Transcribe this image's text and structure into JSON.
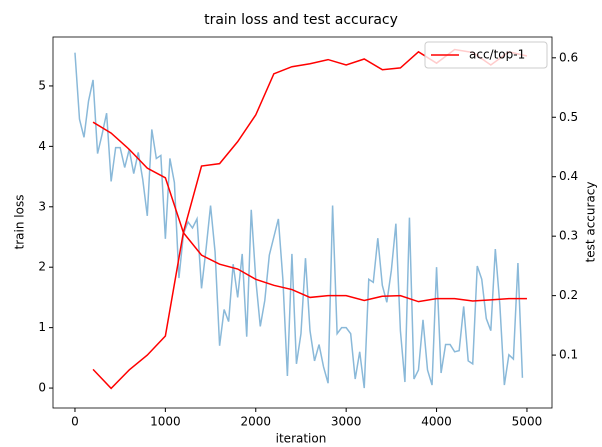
{
  "chart_data": {
    "type": "line",
    "title": "train loss and test accuracy",
    "x_label": "iteration",
    "y_label": "train loss",
    "y2_label": "test accuracy",
    "xlim": [
      -243,
      5277
    ],
    "xticks": [
      0,
      1000,
      2000,
      3000,
      4000,
      5000
    ],
    "ylim": [
      -0.33,
      5.81
    ],
    "yticks": [
      0,
      1,
      2,
      3,
      4,
      5
    ],
    "y2lim": [
      0.011,
      0.635
    ],
    "y2ticks": [
      0.1,
      0.2,
      0.3,
      0.4,
      0.5,
      0.6
    ],
    "legend": "upper right",
    "series": [
      {
        "color": "#8ab9d9",
        "x": [
          0,
          50,
          100,
          150,
          200,
          250,
          300,
          350,
          400,
          450,
          500,
          550,
          600,
          650,
          700,
          750,
          800,
          850,
          900,
          950,
          1000,
          1050,
          1100,
          1150,
          1200,
          1250,
          1300,
          1350,
          1400,
          1450,
          1500,
          1550,
          1600,
          1650,
          1700,
          1750,
          1800,
          1850,
          1900,
          1950,
          2000,
          2050,
          2100,
          2150,
          2200,
          2250,
          2300,
          2350,
          2400,
          2450,
          2500,
          2550,
          2600,
          2650,
          2700,
          2750,
          2800,
          2850,
          2900,
          2950,
          3000,
          3050,
          3100,
          3150,
          3200,
          3250,
          3300,
          3350,
          3400,
          3450,
          3500,
          3550,
          3600,
          3650,
          3700,
          3750,
          3800,
          3850,
          3900,
          3950,
          4000,
          4050,
          4100,
          4150,
          4200,
          4250,
          4300,
          4350,
          4400,
          4450,
          4500,
          4550,
          4600,
          4650,
          4700,
          4750,
          4800,
          4850,
          4900,
          4950
        ],
        "values": [
          5.55,
          4.45,
          4.15,
          4.75,
          5.1,
          3.88,
          4.2,
          4.55,
          3.42,
          3.98,
          3.98,
          3.65,
          3.95,
          3.55,
          3.9,
          3.45,
          2.85,
          4.28,
          3.8,
          3.85,
          2.47,
          3.8,
          3.4,
          1.82,
          2.55,
          2.75,
          2.65,
          2.8,
          1.65,
          2.3,
          3.02,
          2.25,
          0.7,
          1.3,
          1.1,
          2.05,
          1.5,
          2.22,
          0.85,
          2.95,
          1.8,
          1.02,
          1.45,
          2.2,
          2.5,
          2.8,
          1.8,
          0.2,
          2.22,
          0.4,
          0.9,
          2.15,
          0.95,
          0.45,
          0.72,
          0.35,
          0.08,
          3.02,
          0.9,
          1.0,
          1.0,
          0.9,
          0.15,
          0.6,
          0.0,
          1.8,
          1.75,
          2.48,
          1.7,
          1.42,
          1.95,
          2.72,
          0.95,
          0.1,
          2.82,
          0.15,
          0.3,
          1.13,
          0.3,
          0.05,
          2.0,
          0.25,
          0.72,
          0.72,
          0.6,
          0.62,
          1.35,
          0.45,
          0.4,
          2.02,
          1.8,
          1.15,
          0.95,
          2.3,
          1.38,
          0.05,
          0.55,
          0.48,
          2.07,
          0.17
        ]
      },
      {
        "color": "#ff0000",
        "x": [
          200,
          400,
          600,
          800,
          1000,
          1200,
          1400,
          1600,
          1800,
          2000,
          2200,
          2400,
          2600,
          2800,
          3000,
          3200,
          3400,
          3600,
          3800,
          4000,
          4200,
          4400,
          4600,
          4800,
          5000
        ],
        "values": [
          4.4,
          4.22,
          3.95,
          3.64,
          3.48,
          2.57,
          2.2,
          2.05,
          1.97,
          1.8,
          1.7,
          1.63,
          1.5,
          1.53,
          1.53,
          1.45,
          1.52,
          1.53,
          1.43,
          1.48,
          1.48,
          1.44,
          1.46,
          1.48,
          1.48
        ]
      },
      {
        "name": "acc/top-1",
        "color": "#ff0000",
        "axis": "y2",
        "x": [
          200,
          400,
          600,
          800,
          1000,
          1200,
          1400,
          1600,
          1800,
          2000,
          2200,
          2400,
          2600,
          2800,
          3000,
          3200,
          3400,
          3600,
          3800,
          4000,
          4200,
          4400,
          4600,
          4800,
          5000
        ],
        "values": [
          0.076,
          0.044,
          0.075,
          0.1,
          0.132,
          0.307,
          0.418,
          0.422,
          0.459,
          0.504,
          0.573,
          0.585,
          0.59,
          0.597,
          0.588,
          0.598,
          0.58,
          0.583,
          0.61,
          0.591,
          0.614,
          0.609,
          0.588,
          0.61,
          0.603
        ]
      }
    ]
  }
}
